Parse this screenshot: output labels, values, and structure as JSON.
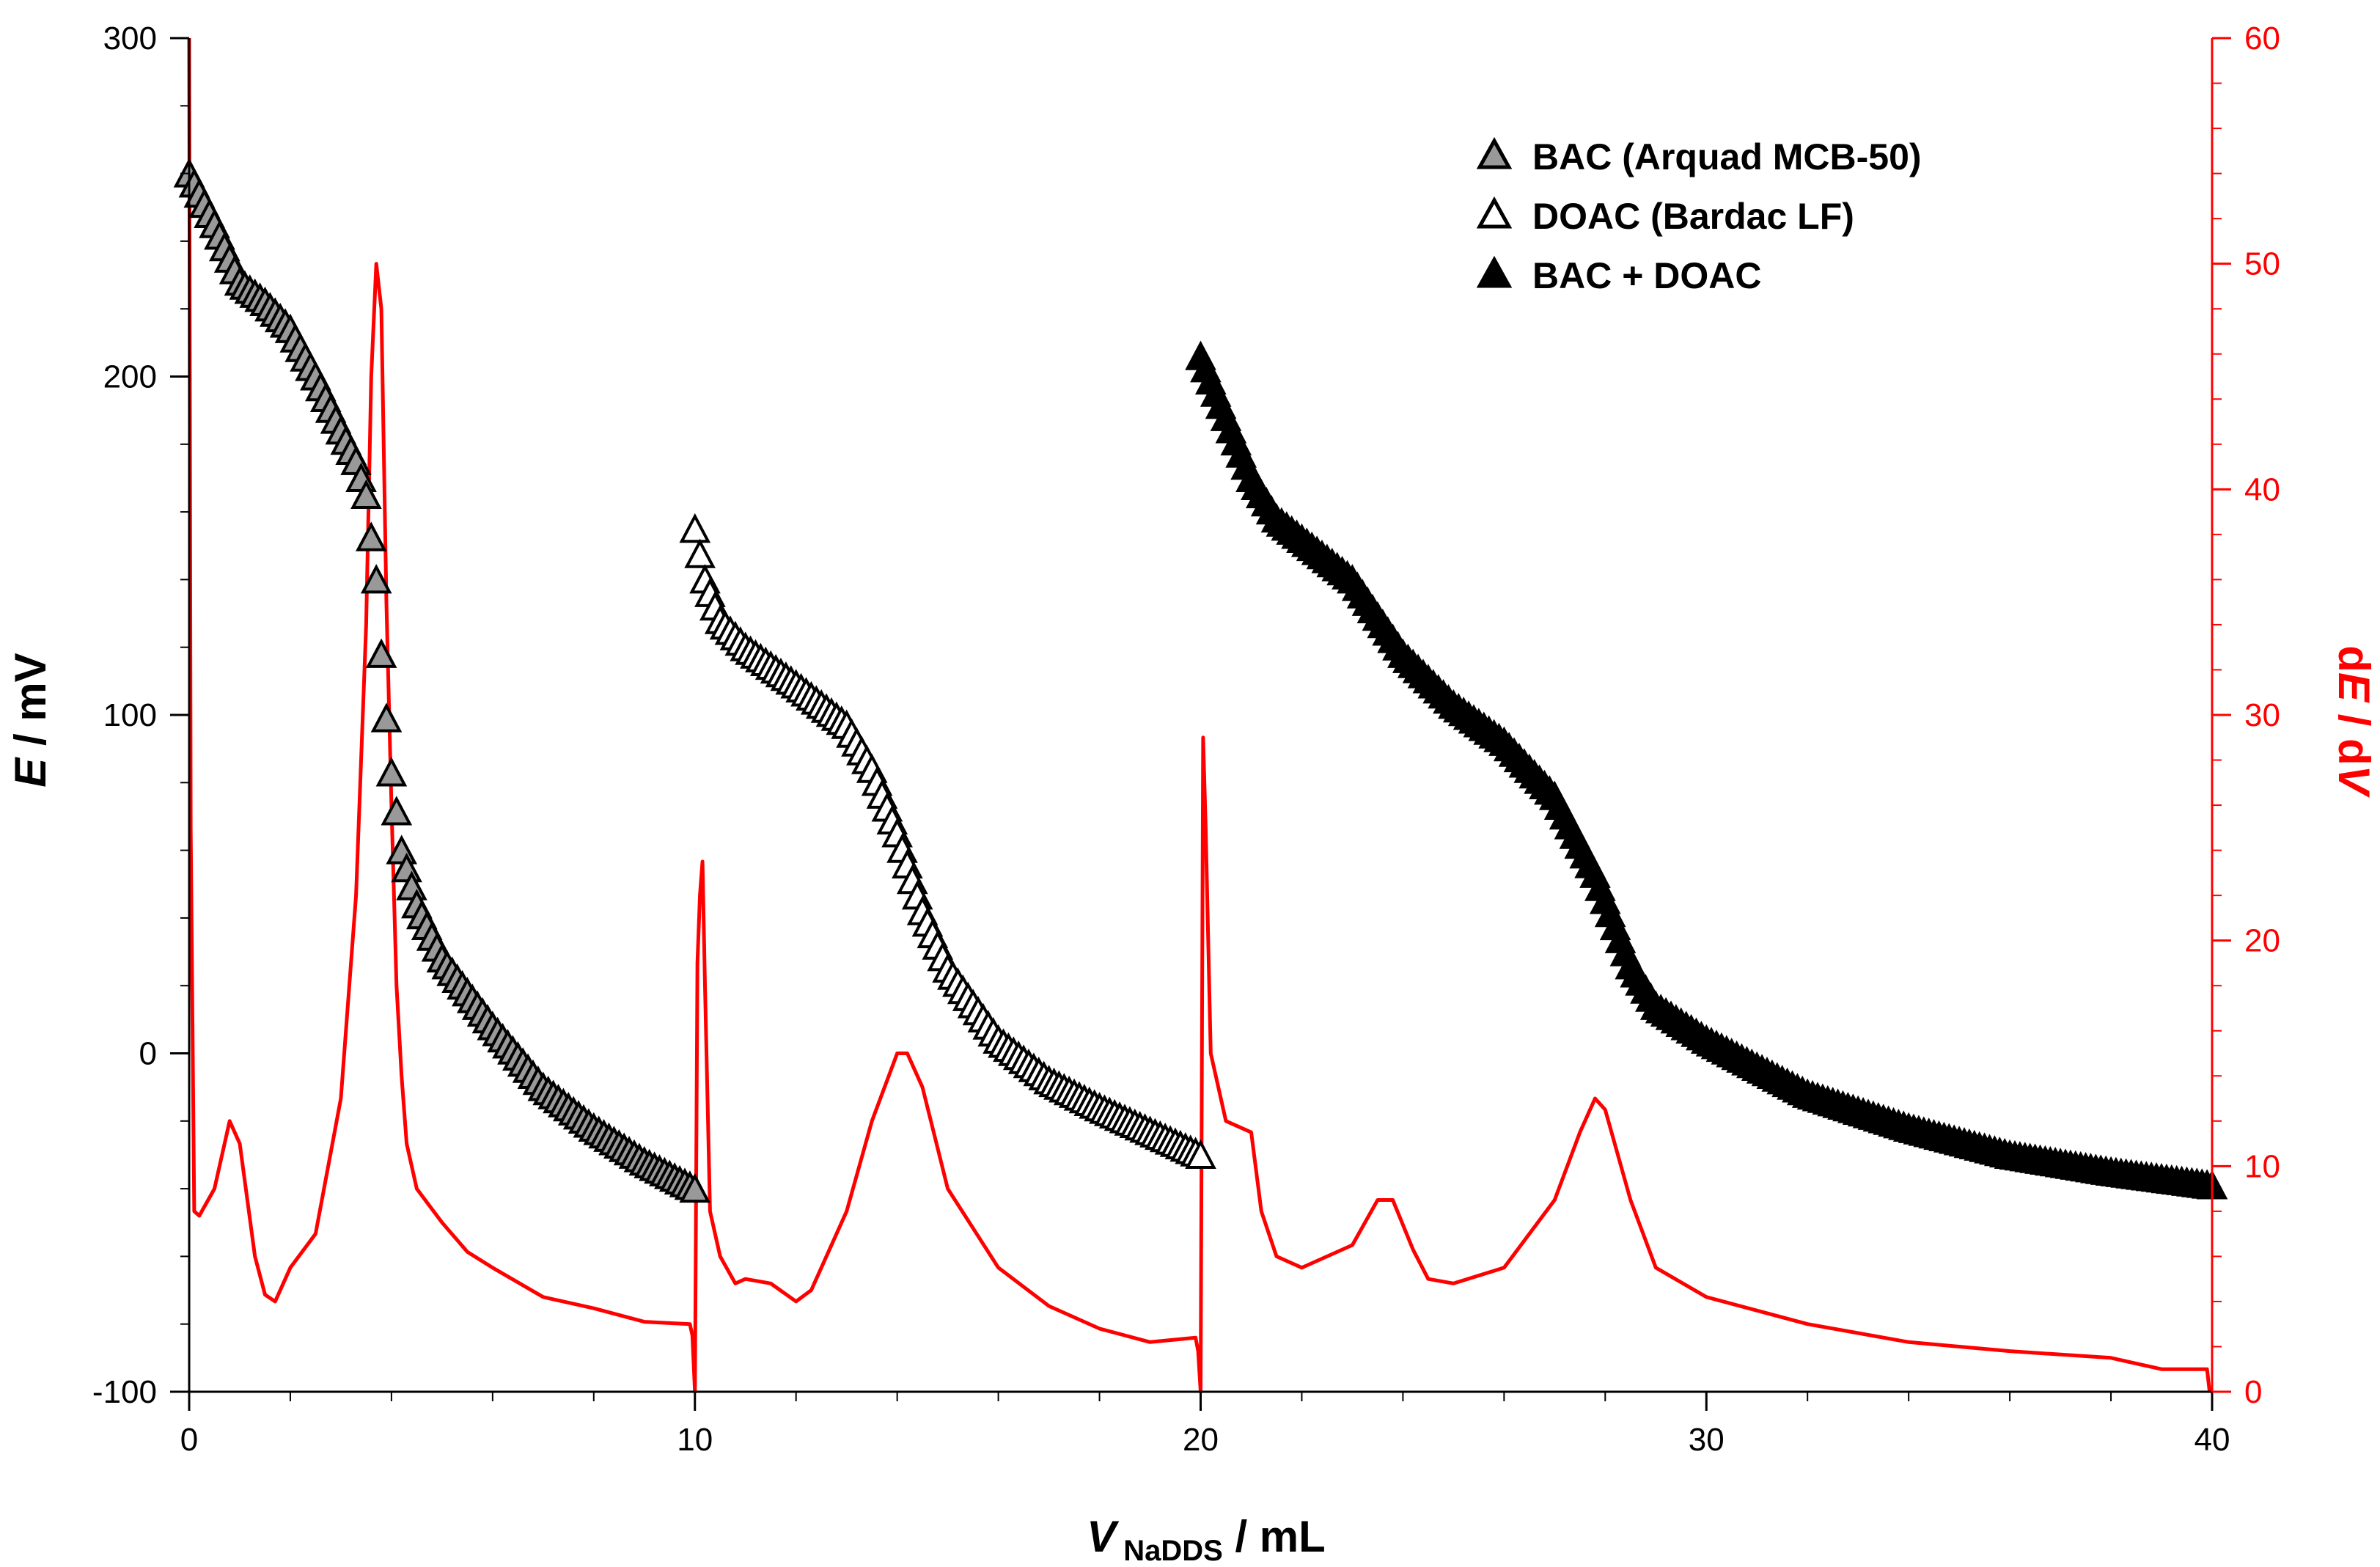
{
  "colors": {
    "axis": "#000000",
    "derivative": "#ff0000",
    "bac_fill": "#999999",
    "doac_fill": "#ffffff",
    "mix_fill": "#000000"
  },
  "chart_data": {
    "type": "scatter",
    "title": "",
    "xlabel": {
      "main": "V",
      "sub": "NaDDS",
      "unit": " / mL"
    },
    "ylabel": {
      "main": "E",
      "unit": " / mV"
    },
    "y2label": {
      "pre": "d",
      "mid": "E",
      "mid2": " / d",
      "end": "V"
    },
    "xlim": [
      0,
      40
    ],
    "ylim": [
      -100,
      300
    ],
    "y2lim": [
      0,
      60
    ],
    "x_ticks": [
      0,
      10,
      20,
      30,
      40
    ],
    "x_tick_labels": [
      "0",
      "10",
      "20",
      "30",
      "40"
    ],
    "y_ticks": [
      -100,
      0,
      100,
      200,
      300
    ],
    "y_tick_labels": [
      "-100",
      "0",
      "100",
      "200",
      "300"
    ],
    "y2_ticks": [
      0,
      10,
      20,
      30,
      40,
      50,
      60
    ],
    "y2_tick_labels": [
      "0",
      "10",
      "20",
      "30",
      "40",
      "50",
      "60"
    ],
    "legend": {
      "position": "top-right",
      "entries": [
        {
          "label": "BAC (Arquad MCB-50)",
          "marker": "triangle",
          "fill": "gray"
        },
        {
          "label": "DOAC (Bardac LF)",
          "marker": "triangle",
          "fill": "white"
        },
        {
          "label": "BAC + DOAC",
          "marker": "triangle",
          "fill": "black"
        }
      ]
    },
    "series": [
      {
        "name": "BAC (Arquad MCB-50)",
        "axis": "left",
        "style": "markers",
        "fill": "gray",
        "x": [
          0,
          0.5,
          1.0,
          1.5,
          2.0,
          2.5,
          3.0,
          3.3,
          3.5,
          3.7,
          3.8,
          3.9,
          4.0,
          4.2,
          4.5,
          5.0,
          6.0,
          7.0,
          8.0,
          9.0,
          10.0
        ],
        "y": [
          260,
          245,
          228,
          222,
          214,
          200,
          184,
          175,
          165,
          140,
          118,
          99,
          83,
          60,
          44,
          28,
          8,
          -10,
          -22,
          -32,
          -40
        ]
      },
      {
        "name": "DOAC (Bardac LF)",
        "axis": "left",
        "style": "markers",
        "fill": "white",
        "x": [
          10.0,
          10.2,
          10.5,
          11.0,
          12.0,
          13.0,
          13.5,
          14.0,
          14.5,
          15.0,
          16.0,
          17.0,
          18.0,
          19.0,
          20.0
        ],
        "y": [
          155,
          140,
          128,
          120,
          109,
          97,
          84,
          65,
          42,
          25,
          4,
          -8,
          -16,
          -23,
          -30
        ]
      },
      {
        "name": "BAC + DOAC",
        "axis": "left",
        "style": "markers",
        "fill": "black",
        "x": [
          20.0,
          20.5,
          21.0,
          21.5,
          22.0,
          23.0,
          24.0,
          25.0,
          26.0,
          27.0,
          27.8,
          28.5,
          29.0,
          30.0,
          32.0,
          34.0,
          36.0,
          38.0,
          40.0
        ],
        "y": [
          206,
          188,
          170,
          158,
          152,
          140,
          118,
          103,
          92,
          76,
          53,
          26,
          14,
          4,
          -12,
          -22,
          -30,
          -35,
          -39
        ]
      },
      {
        "name": "dE/dV",
        "axis": "right",
        "style": "line",
        "x": [
          0.0,
          0.03,
          0.1,
          0.2,
          0.5,
          0.8,
          1.0,
          1.3,
          1.5,
          1.7,
          2.0,
          2.5,
          3.0,
          3.3,
          3.5,
          3.6,
          3.7,
          3.8,
          3.9,
          4.0,
          4.1,
          4.2,
          4.3,
          4.5,
          5.0,
          5.5,
          6.0,
          7.0,
          8.0,
          9.0,
          9.9,
          9.95,
          10.0,
          10.05,
          10.1,
          10.15,
          10.2,
          10.3,
          10.5,
          10.8,
          11.0,
          11.5,
          12.0,
          12.3,
          12.5,
          13.0,
          13.5,
          14.0,
          14.2,
          14.5,
          15.0,
          16.0,
          17.0,
          18.0,
          19.0,
          19.9,
          19.95,
          20.0,
          20.05,
          20.1,
          20.2,
          20.5,
          21.0,
          21.2,
          21.5,
          22.0,
          23.0,
          23.5,
          23.8,
          24.2,
          24.5,
          25.0,
          26.0,
          27.0,
          27.5,
          27.8,
          28.0,
          28.5,
          29.0,
          30.0,
          32.0,
          34.0,
          36.0,
          38.0,
          39.0,
          39.9,
          39.95
        ],
        "y": [
          60,
          25,
          8,
          7.8,
          9,
          12,
          11,
          6,
          4.3,
          4,
          5.5,
          7,
          13,
          22,
          34,
          45,
          50,
          48,
          35,
          26,
          18,
          14,
          11,
          9,
          7.5,
          6.2,
          5.5,
          4.2,
          3.7,
          3.1,
          3.0,
          2.5,
          0,
          19,
          22,
          23.5,
          18,
          8,
          6,
          4.8,
          5.0,
          4.8,
          4.0,
          4.5,
          5.5,
          8,
          12,
          15,
          15,
          13.5,
          9,
          5.5,
          3.8,
          2.8,
          2.2,
          2.4,
          1.8,
          0,
          29,
          25,
          15,
          12,
          11.5,
          8,
          6,
          5.5,
          6.5,
          8.5,
          8.5,
          6.3,
          5,
          4.8,
          5.5,
          8.5,
          11.5,
          13,
          12.5,
          8.5,
          5.5,
          4.2,
          3.0,
          2.2,
          1.8,
          1.5,
          1.0,
          1.0,
          0
        ]
      }
    ]
  }
}
